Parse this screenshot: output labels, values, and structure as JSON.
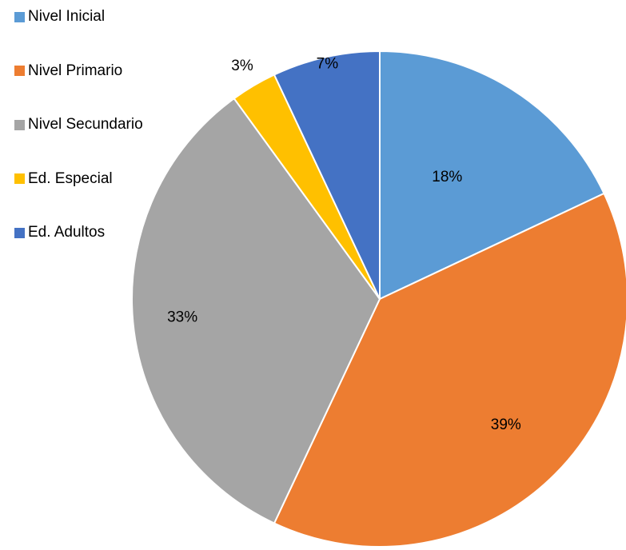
{
  "chart_data": {
    "type": "pie",
    "title": "",
    "start_angle_deg": 0,
    "direction": "clockwise",
    "legend_position": "top-left",
    "slices": [
      {
        "label": "Nivel Inicial",
        "value": 18,
        "display": "18%",
        "color": "#5B9BD5"
      },
      {
        "label": "Nivel Primario",
        "value": 39,
        "display": "39%",
        "color": "#ED7D31"
      },
      {
        "label": "Nivel Secundario",
        "value": 33,
        "display": "33%",
        "color": "#A5A5A5"
      },
      {
        "label": "Ed. Especial",
        "value": 3,
        "display": "3%",
        "color": "#FFC000"
      },
      {
        "label": "Ed. Adultos",
        "value": 7,
        "display": "7%",
        "color": "#4472C4"
      }
    ]
  }
}
